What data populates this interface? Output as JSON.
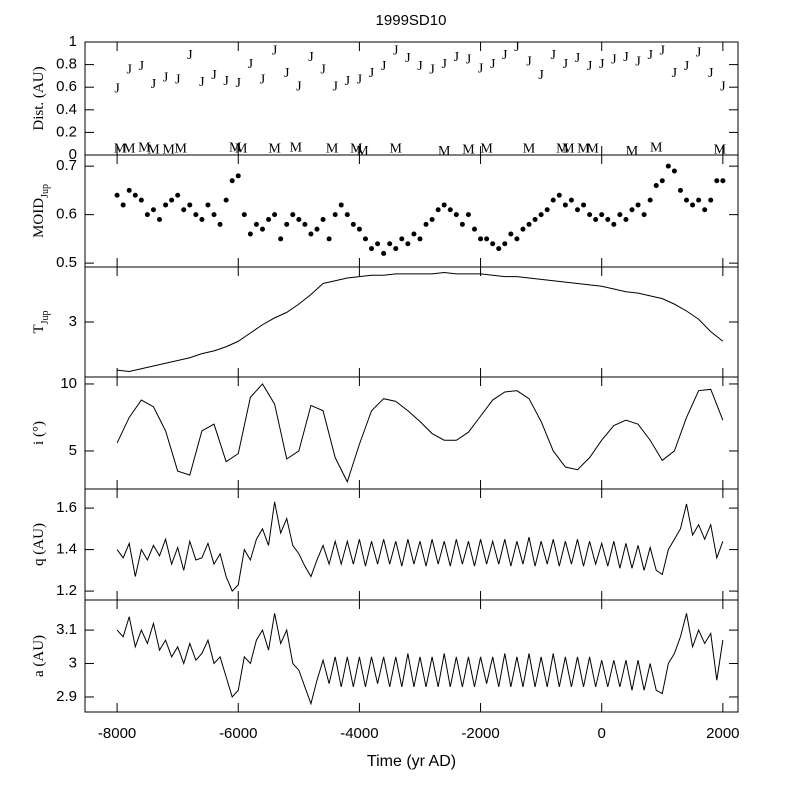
{
  "chart_data": [
    {
      "type": "scatter",
      "title": "1999SD10",
      "ylabel": "Dist. (AU)",
      "xlim": [
        -8530,
        2250
      ],
      "ylim": [
        0,
        1
      ],
      "yticks": [
        0,
        0.2,
        0.4,
        0.6,
        0.8,
        1
      ],
      "series": [
        {
          "name": "J",
          "x": [
            -8000,
            -7800,
            -7600,
            -7400,
            -7200,
            -7000,
            -6800,
            -6600,
            -6400,
            -6200,
            -6000,
            -5800,
            -5600,
            -5400,
            -5200,
            -5000,
            -4800,
            -4600,
            -4400,
            -4200,
            -4000,
            -3800,
            -3600,
            -3400,
            -3200,
            -3000,
            -2800,
            -2600,
            -2400,
            -2200,
            -2000,
            -1800,
            -1600,
            -1400,
            -1200,
            -1000,
            -800,
            -600,
            -400,
            -200,
            0,
            200,
            400,
            600,
            800,
            1000,
            1200,
            1400,
            1600,
            1800,
            2000
          ],
          "values": [
            0.58,
            0.75,
            0.78,
            0.62,
            0.68,
            0.66,
            0.88,
            0.64,
            0.7,
            0.65,
            0.63,
            0.8,
            0.66,
            0.92,
            0.72,
            0.6,
            0.86,
            0.75,
            0.6,
            0.65,
            0.66,
            0.72,
            0.78,
            0.92,
            0.85,
            0.78,
            0.75,
            0.8,
            0.86,
            0.84,
            0.76,
            0.8,
            0.88,
            0.95,
            0.82,
            0.7,
            0.88,
            0.8,
            0.85,
            0.78,
            0.8,
            0.84,
            0.86,
            0.82,
            0.88,
            0.92,
            0.72,
            0.78,
            0.9,
            0.72,
            0.6
          ]
        },
        {
          "name": "M",
          "x": [
            -7950,
            -7800,
            -7550,
            -7400,
            -7150,
            -6950,
            -6050,
            -5950,
            -5400,
            -5050,
            -4450,
            -4050,
            -3950,
            -3400,
            -2600,
            -2200,
            -1900,
            -1200,
            -650,
            -550,
            -300,
            -150,
            500,
            900,
            1950
          ],
          "values": [
            0.05,
            0.05,
            0.06,
            0.04,
            0.04,
            0.05,
            0.06,
            0.05,
            0.05,
            0.06,
            0.05,
            0.05,
            0.03,
            0.05,
            0.03,
            0.04,
            0.05,
            0.05,
            0.05,
            0.05,
            0.05,
            0.05,
            0.03,
            0.06,
            0.04
          ]
        }
      ]
    },
    {
      "type": "scatter",
      "ylabel": "MOID",
      "ylabel_sub": "Jup",
      "xlim": [
        -8530,
        2250
      ],
      "ylim": [
        0.492,
        0.723
      ],
      "yticks": [
        0.5,
        0.6,
        0.7
      ],
      "x": [
        -8000,
        -7900,
        -7800,
        -7700,
        -7600,
        -7500,
        -7400,
        -7300,
        -7200,
        -7100,
        -7000,
        -6900,
        -6800,
        -6700,
        -6600,
        -6500,
        -6400,
        -6300,
        -6200,
        -6100,
        -6000,
        -5900,
        -5800,
        -5700,
        -5600,
        -5500,
        -5400,
        -5300,
        -5200,
        -5100,
        -5000,
        -4900,
        -4800,
        -4700,
        -4600,
        -4500,
        -4400,
        -4300,
        -4200,
        -4100,
        -4000,
        -3900,
        -3800,
        -3700,
        -3600,
        -3500,
        -3400,
        -3300,
        -3200,
        -3100,
        -3000,
        -2900,
        -2800,
        -2700,
        -2600,
        -2500,
        -2400,
        -2300,
        -2200,
        -2100,
        -2000,
        -1900,
        -1800,
        -1700,
        -1600,
        -1500,
        -1400,
        -1300,
        -1200,
        -1100,
        -1000,
        -900,
        -800,
        -700,
        -600,
        -500,
        -400,
        -300,
        -200,
        -100,
        0,
        100,
        200,
        300,
        400,
        500,
        600,
        700,
        800,
        900,
        1000,
        1100,
        1200,
        1300,
        1400,
        1500,
        1600,
        1700,
        1800,
        1900,
        2000
      ],
      "values": [
        0.64,
        0.62,
        0.65,
        0.64,
        0.63,
        0.6,
        0.61,
        0.59,
        0.62,
        0.63,
        0.64,
        0.61,
        0.62,
        0.6,
        0.59,
        0.62,
        0.6,
        0.58,
        0.63,
        0.67,
        0.68,
        0.6,
        0.56,
        0.58,
        0.57,
        0.59,
        0.6,
        0.55,
        0.58,
        0.6,
        0.59,
        0.58,
        0.56,
        0.57,
        0.59,
        0.55,
        0.6,
        0.62,
        0.6,
        0.58,
        0.57,
        0.55,
        0.53,
        0.54,
        0.52,
        0.54,
        0.53,
        0.55,
        0.54,
        0.56,
        0.55,
        0.58,
        0.59,
        0.61,
        0.62,
        0.61,
        0.6,
        0.58,
        0.6,
        0.57,
        0.55,
        0.55,
        0.54,
        0.53,
        0.54,
        0.56,
        0.55,
        0.57,
        0.58,
        0.59,
        0.6,
        0.61,
        0.63,
        0.64,
        0.62,
        0.63,
        0.61,
        0.62,
        0.6,
        0.59,
        0.6,
        0.59,
        0.58,
        0.6,
        0.59,
        0.61,
        0.62,
        0.6,
        0.63,
        0.66,
        0.67,
        0.7,
        0.69,
        0.65,
        0.63,
        0.62,
        0.63,
        0.61,
        0.63,
        0.67,
        0.67
      ]
    },
    {
      "type": "line",
      "ylabel": "T",
      "ylabel_sub": "Jup",
      "xlim": [
        -8530,
        2250
      ],
      "ylim": [
        2.6,
        3.4
      ],
      "yticks": [
        3
      ],
      "x": [
        -8000,
        -7800,
        -7600,
        -7400,
        -7200,
        -7000,
        -6800,
        -6600,
        -6400,
        -6200,
        -6000,
        -5800,
        -5600,
        -5400,
        -5200,
        -5000,
        -4800,
        -4600,
        -4400,
        -4200,
        -4000,
        -3800,
        -3600,
        -3400,
        -3200,
        -3000,
        -2800,
        -2600,
        -2400,
        -2200,
        -2000,
        -1800,
        -1600,
        -1400,
        -1200,
        -1000,
        -800,
        -600,
        -400,
        -200,
        0,
        200,
        400,
        600,
        800,
        1000,
        1200,
        1400,
        1600,
        1800,
        2000
      ],
      "values": [
        2.65,
        2.64,
        2.66,
        2.68,
        2.7,
        2.72,
        2.74,
        2.77,
        2.79,
        2.82,
        2.86,
        2.92,
        2.98,
        3.03,
        3.07,
        3.13,
        3.2,
        3.28,
        3.3,
        3.32,
        3.33,
        3.34,
        3.34,
        3.35,
        3.35,
        3.35,
        3.35,
        3.36,
        3.35,
        3.35,
        3.35,
        3.34,
        3.33,
        3.33,
        3.32,
        3.31,
        3.3,
        3.29,
        3.28,
        3.27,
        3.26,
        3.24,
        3.22,
        3.21,
        3.19,
        3.17,
        3.13,
        3.08,
        3.02,
        2.93,
        2.86
      ]
    },
    {
      "type": "line",
      "ylabel": "i (°)",
      "xlim": [
        -8530,
        2250
      ],
      "ylim": [
        2.16,
        10.52
      ],
      "yticks": [
        5,
        10
      ],
      "x": [
        -8000,
        -7800,
        -7600,
        -7400,
        -7200,
        -7000,
        -6800,
        -6600,
        -6400,
        -6200,
        -6000,
        -5800,
        -5600,
        -5400,
        -5200,
        -5000,
        -4800,
        -4600,
        -4400,
        -4200,
        -4000,
        -3800,
        -3600,
        -3400,
        -3200,
        -3000,
        -2800,
        -2600,
        -2400,
        -2200,
        -2000,
        -1800,
        -1600,
        -1400,
        -1200,
        -1000,
        -800,
        -600,
        -400,
        -200,
        0,
        200,
        400,
        600,
        800,
        1000,
        1200,
        1400,
        1600,
        1800,
        2000
      ],
      "values": [
        5.6,
        7.5,
        8.8,
        8.3,
        6.5,
        3.5,
        3.2,
        6.5,
        7.0,
        4.2,
        4.8,
        9.0,
        10.0,
        8.5,
        4.4,
        5.0,
        8.4,
        8.0,
        4.5,
        2.7,
        5.5,
        8.0,
        8.9,
        8.7,
        8.0,
        7.2,
        6.3,
        5.8,
        5.8,
        6.4,
        7.6,
        8.8,
        9.4,
        9.5,
        8.9,
        7.2,
        5.0,
        3.8,
        3.6,
        4.5,
        5.8,
        6.9,
        7.3,
        7.0,
        5.8,
        4.3,
        5.0,
        7.5,
        9.5,
        9.6,
        7.3
      ]
    },
    {
      "type": "line",
      "ylabel": "q (AU)",
      "xlim": [
        -8530,
        2250
      ],
      "ylim": [
        1.157,
        1.692
      ],
      "yticks": [
        1.2,
        1.4,
        1.6
      ],
      "x": [
        -8000,
        -7900,
        -7800,
        -7700,
        -7600,
        -7500,
        -7400,
        -7300,
        -7200,
        -7100,
        -7000,
        -6900,
        -6800,
        -6700,
        -6600,
        -6500,
        -6400,
        -6300,
        -6200,
        -6100,
        -6000,
        -5900,
        -5800,
        -5700,
        -5600,
        -5500,
        -5400,
        -5300,
        -5200,
        -5100,
        -5000,
        -4900,
        -4800,
        -4700,
        -4600,
        -4500,
        -4400,
        -4300,
        -4200,
        -4100,
        -4000,
        -3900,
        -3800,
        -3700,
        -3600,
        -3500,
        -3400,
        -3300,
        -3200,
        -3100,
        -3000,
        -2900,
        -2800,
        -2700,
        -2600,
        -2500,
        -2400,
        -2300,
        -2200,
        -2100,
        -2000,
        -1900,
        -1800,
        -1700,
        -1600,
        -1500,
        -1400,
        -1300,
        -1200,
        -1100,
        -1000,
        -900,
        -800,
        -700,
        -600,
        -500,
        -400,
        -300,
        -200,
        -100,
        0,
        100,
        200,
        300,
        400,
        500,
        600,
        700,
        800,
        900,
        1000,
        1100,
        1200,
        1300,
        1400,
        1500,
        1600,
        1700,
        1800,
        1900,
        2000
      ],
      "values": [
        1.4,
        1.36,
        1.43,
        1.27,
        1.4,
        1.35,
        1.42,
        1.37,
        1.45,
        1.33,
        1.41,
        1.3,
        1.44,
        1.35,
        1.36,
        1.43,
        1.33,
        1.38,
        1.27,
        1.2,
        1.23,
        1.4,
        1.35,
        1.45,
        1.5,
        1.42,
        1.63,
        1.48,
        1.55,
        1.42,
        1.38,
        1.32,
        1.27,
        1.35,
        1.42,
        1.33,
        1.44,
        1.33,
        1.44,
        1.33,
        1.45,
        1.32,
        1.44,
        1.33,
        1.45,
        1.33,
        1.44,
        1.32,
        1.45,
        1.33,
        1.44,
        1.32,
        1.45,
        1.33,
        1.44,
        1.32,
        1.45,
        1.33,
        1.44,
        1.32,
        1.45,
        1.33,
        1.44,
        1.33,
        1.45,
        1.32,
        1.44,
        1.33,
        1.46,
        1.32,
        1.44,
        1.33,
        1.45,
        1.32,
        1.44,
        1.33,
        1.45,
        1.32,
        1.44,
        1.33,
        1.43,
        1.32,
        1.44,
        1.31,
        1.43,
        1.31,
        1.42,
        1.3,
        1.41,
        1.3,
        1.28,
        1.4,
        1.45,
        1.5,
        1.62,
        1.47,
        1.52,
        1.45,
        1.52,
        1.36,
        1.44
      ]
    },
    {
      "type": "line",
      "ylabel": "a (AU)",
      "xlabel": "Time (yr AD)",
      "xlim": [
        -8530,
        2250
      ],
      "ylim": [
        2.855,
        3.19
      ],
      "yticks": [
        2.9,
        3,
        3.1
      ],
      "xticks": [
        -8000,
        -6000,
        -4000,
        -2000,
        0,
        2000
      ],
      "x": [
        -8000,
        -7900,
        -7800,
        -7700,
        -7600,
        -7500,
        -7400,
        -7300,
        -7200,
        -7100,
        -7000,
        -6900,
        -6800,
        -6700,
        -6600,
        -6500,
        -6400,
        -6300,
        -6200,
        -6100,
        -6000,
        -5900,
        -5800,
        -5700,
        -5600,
        -5500,
        -5400,
        -5300,
        -5200,
        -5100,
        -5000,
        -4900,
        -4800,
        -4700,
        -4600,
        -4500,
        -4400,
        -4300,
        -4200,
        -4100,
        -4000,
        -3900,
        -3800,
        -3700,
        -3600,
        -3500,
        -3400,
        -3300,
        -3200,
        -3100,
        -3000,
        -2900,
        -2800,
        -2700,
        -2600,
        -2500,
        -2400,
        -2300,
        -2200,
        -2100,
        -2000,
        -1900,
        -1800,
        -1700,
        -1600,
        -1500,
        -1400,
        -1300,
        -1200,
        -1100,
        -1000,
        -900,
        -800,
        -700,
        -600,
        -500,
        -400,
        -300,
        -200,
        -100,
        0,
        100,
        200,
        300,
        400,
        500,
        600,
        700,
        800,
        900,
        1000,
        1100,
        1200,
        1300,
        1400,
        1500,
        1600,
        1700,
        1800,
        1900,
        2000
      ],
      "values": [
        3.1,
        3.08,
        3.14,
        3.05,
        3.1,
        3.06,
        3.12,
        3.04,
        3.07,
        3.02,
        3.05,
        3.0,
        3.06,
        3.01,
        3.03,
        3.07,
        3.0,
        3.02,
        2.96,
        2.9,
        2.92,
        3.02,
        3.0,
        3.07,
        3.1,
        3.04,
        3.15,
        3.06,
        3.1,
        3.0,
        2.98,
        2.93,
        2.88,
        2.95,
        3.01,
        2.94,
        3.02,
        2.93,
        3.02,
        2.93,
        3.02,
        2.93,
        3.02,
        2.94,
        3.02,
        2.93,
        3.02,
        2.93,
        3.03,
        2.93,
        3.02,
        2.93,
        3.02,
        2.93,
        3.03,
        2.93,
        3.02,
        2.93,
        3.02,
        2.93,
        3.02,
        2.94,
        3.02,
        2.93,
        3.03,
        2.93,
        3.02,
        2.93,
        3.03,
        2.93,
        3.02,
        2.93,
        3.03,
        2.93,
        3.02,
        2.93,
        3.02,
        2.93,
        3.02,
        2.93,
        3.01,
        2.93,
        3.01,
        2.93,
        3.01,
        2.92,
        3.01,
        2.92,
        3.0,
        2.92,
        2.91,
        3.0,
        3.03,
        3.08,
        3.15,
        3.05,
        3.1,
        3.06,
        3.09,
        2.95,
        3.07
      ]
    }
  ]
}
